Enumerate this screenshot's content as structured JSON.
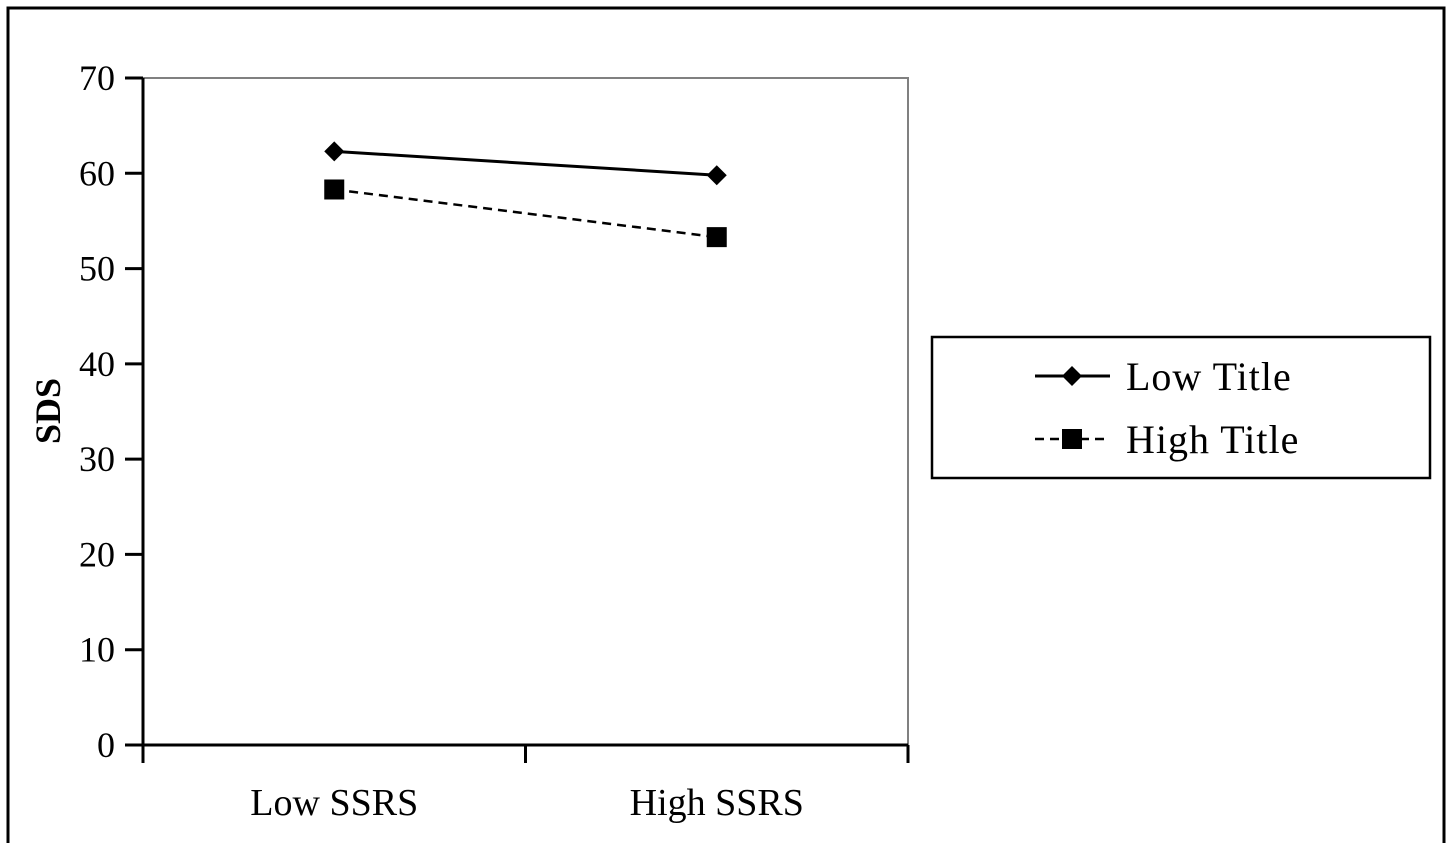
{
  "chart_data": {
    "type": "line",
    "title": "",
    "xlabel": "",
    "ylabel": "SDS",
    "ylim": [
      0,
      70
    ],
    "yticks": [
      0,
      10,
      20,
      30,
      40,
      50,
      60,
      70
    ],
    "categories": [
      "Low SSRS",
      "High SSRS"
    ],
    "series": [
      {
        "name": "Low Title",
        "values": [
          62.3,
          59.8
        ],
        "marker": "diamond",
        "line_style": "solid",
        "color": "#000000"
      },
      {
        "name": "High Title",
        "values": [
          58.3,
          53.3
        ],
        "marker": "square",
        "line_style": "dashed",
        "color": "#000000"
      }
    ],
    "grid": false,
    "legend_position": "right"
  }
}
